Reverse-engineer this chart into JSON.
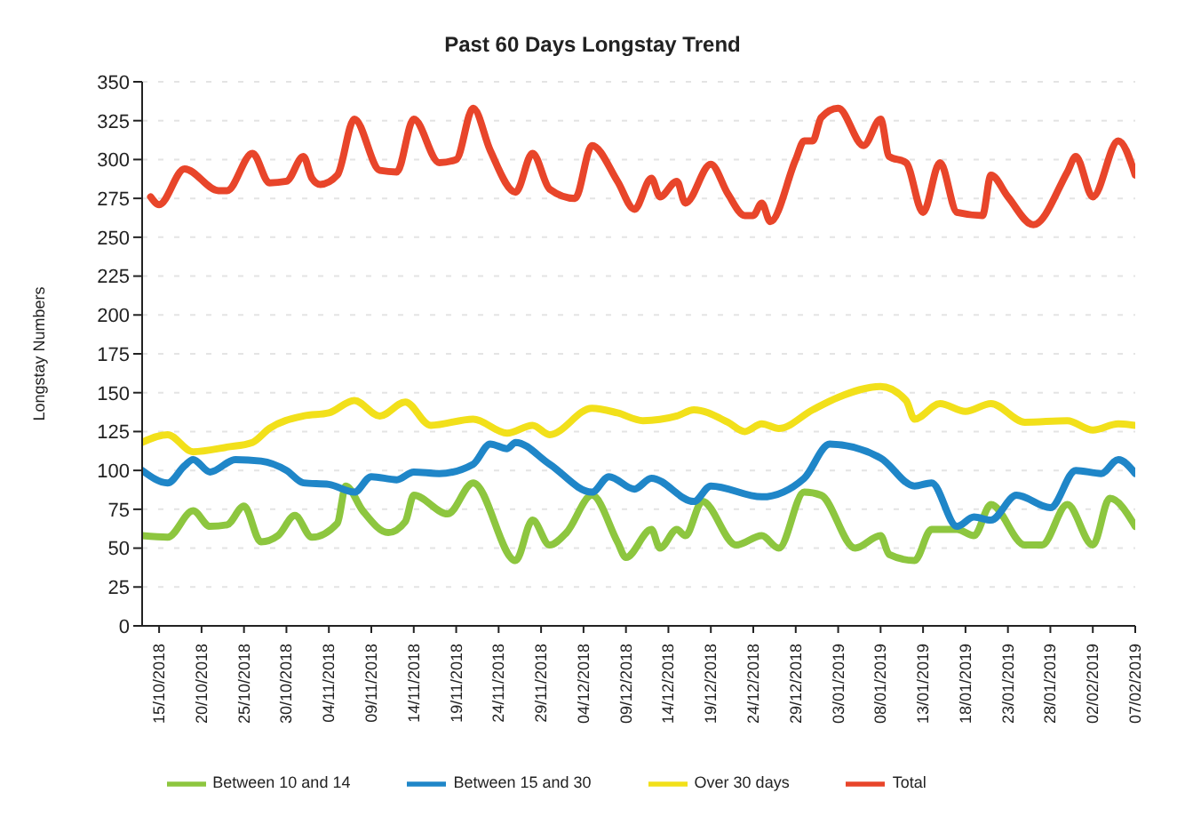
{
  "chart_data": {
    "type": "line",
    "title": "Past 60 Days Longstay Trend",
    "ylabel": "Longstay Numbers",
    "xlim": [
      "2018-10-13",
      "2019-02-07"
    ],
    "xticks": [
      {
        "value": "2018-10-15",
        "label": "15/10/2018"
      },
      {
        "value": "2018-10-20",
        "label": "20/10/2018"
      },
      {
        "value": "2018-10-25",
        "label": "25/10/2018"
      },
      {
        "value": "2018-10-30",
        "label": "30/10/2018"
      },
      {
        "value": "2018-11-04",
        "label": "04/11/2018"
      },
      {
        "value": "2018-11-09",
        "label": "09/11/2018"
      },
      {
        "value": "2018-11-14",
        "label": "14/11/2018"
      },
      {
        "value": "2018-11-19",
        "label": "19/11/2018"
      },
      {
        "value": "2018-11-24",
        "label": "24/11/2018"
      },
      {
        "value": "2018-11-29",
        "label": "29/11/2018"
      },
      {
        "value": "2018-12-04",
        "label": "04/12/2018"
      },
      {
        "value": "2018-12-09",
        "label": "09/12/2018"
      },
      {
        "value": "2018-12-14",
        "label": "14/12/2018"
      },
      {
        "value": "2018-12-19",
        "label": "19/12/2018"
      },
      {
        "value": "2018-12-24",
        "label": "24/12/2018"
      },
      {
        "value": "2018-12-29",
        "label": "29/12/2018"
      },
      {
        "value": "2019-01-03",
        "label": "03/01/2019"
      },
      {
        "value": "2019-01-08",
        "label": "08/01/2019"
      },
      {
        "value": "2019-01-13",
        "label": "13/01/2019"
      },
      {
        "value": "2019-01-18",
        "label": "18/01/2019"
      },
      {
        "value": "2019-01-23",
        "label": "23/01/2019"
      },
      {
        "value": "2019-01-28",
        "label": "28/01/2019"
      },
      {
        "value": "2019-02-02",
        "label": "02/02/2019"
      },
      {
        "value": "2019-02-07",
        "label": "07/02/2019"
      }
    ],
    "ylim": [
      0,
      350
    ],
    "yticks": [
      0,
      25,
      50,
      75,
      100,
      125,
      150,
      175,
      200,
      225,
      250,
      275,
      300,
      325,
      350
    ],
    "grid": "y",
    "legend": "bottom",
    "marker": "none",
    "line_style": "solid",
    "series": [
      {
        "name": "Between 10 and 14",
        "color": "#8dc63f",
        "x": [
          "2018-10-13",
          "2018-10-16",
          "2018-10-19",
          "2018-10-21",
          "2018-10-23",
          "2018-10-25",
          "2018-10-27",
          "2018-10-29",
          "2018-10-31",
          "2018-11-02",
          "2018-11-05",
          "2018-11-06",
          "2018-11-08",
          "2018-11-11",
          "2018-11-13",
          "2018-11-14",
          "2018-11-18",
          "2018-11-21",
          "2018-11-26",
          "2018-11-28",
          "2018-11-30",
          "2018-12-02",
          "2018-12-05",
          "2018-12-08",
          "2018-12-09",
          "2018-12-12",
          "2018-12-13",
          "2018-12-15",
          "2018-12-16",
          "2018-12-18",
          "2018-12-22",
          "2018-12-25",
          "2018-12-27",
          "2018-12-30",
          "2019-01-01",
          "2019-01-05",
          "2019-01-08",
          "2019-01-09",
          "2019-01-12",
          "2019-01-14",
          "2019-01-17",
          "2019-01-19",
          "2019-01-21",
          "2019-01-25",
          "2019-01-27",
          "2019-01-30",
          "2019-02-02",
          "2019-02-04",
          "2019-02-07"
        ],
        "values": [
          58,
          57,
          74,
          64,
          65,
          77,
          54,
          58,
          71,
          57,
          66,
          90,
          74,
          60,
          67,
          84,
          72,
          92,
          42,
          68,
          52,
          60,
          84,
          54,
          44,
          62,
          50,
          62,
          58,
          80,
          52,
          58,
          50,
          86,
          84,
          50,
          58,
          46,
          42,
          62,
          62,
          58,
          78,
          52,
          52,
          78,
          52,
          82,
          64
        ]
      },
      {
        "name": "Between 15 and 30",
        "color": "#1f86c8",
        "x": [
          "2018-10-13",
          "2018-10-16",
          "2018-10-18",
          "2018-10-19",
          "2018-10-21",
          "2018-10-24",
          "2018-10-27",
          "2018-10-30",
          "2018-11-01",
          "2018-11-04",
          "2018-11-07",
          "2018-11-09",
          "2018-11-12",
          "2018-11-14",
          "2018-11-17",
          "2018-11-21",
          "2018-11-23",
          "2018-11-25",
          "2018-11-26",
          "2018-11-30",
          "2018-12-05",
          "2018-12-07",
          "2018-12-10",
          "2018-12-12",
          "2018-12-17",
          "2018-12-19",
          "2018-12-25",
          "2018-12-30",
          "2019-01-02",
          "2019-01-08",
          "2019-01-12",
          "2019-01-14",
          "2019-01-17",
          "2019-01-19",
          "2019-01-21",
          "2019-01-24",
          "2019-01-28",
          "2019-01-31",
          "2019-02-03",
          "2019-02-05",
          "2019-02-07"
        ],
        "values": [
          100,
          92,
          103,
          107,
          99,
          107,
          106,
          100,
          92,
          91,
          86,
          96,
          94,
          99,
          98,
          104,
          117,
          114,
          118,
          104,
          86,
          96,
          88,
          95,
          80,
          90,
          83,
          95,
          117,
          108,
          90,
          92,
          64,
          70,
          68,
          84,
          76,
          100,
          98,
          107,
          98
        ]
      },
      {
        "name": "Over 30 days",
        "color": "#f2e01a",
        "x": [
          "2018-10-13",
          "2018-10-16",
          "2018-10-19",
          "2018-10-23",
          "2018-10-26",
          "2018-10-28",
          "2018-11-01",
          "2018-11-04",
          "2018-11-07",
          "2018-11-10",
          "2018-11-13",
          "2018-11-16",
          "2018-11-21",
          "2018-11-25",
          "2018-11-28",
          "2018-11-30",
          "2018-12-05",
          "2018-12-08",
          "2018-12-11",
          "2018-12-15",
          "2018-12-17",
          "2018-12-21",
          "2018-12-23",
          "2018-12-25",
          "2018-12-27",
          "2018-12-31",
          "2019-01-03",
          "2019-01-08",
          "2019-01-11",
          "2019-01-12",
          "2019-01-15",
          "2019-01-18",
          "2019-01-21",
          "2019-01-25",
          "2019-01-30",
          "2019-02-02",
          "2019-02-05",
          "2019-02-07"
        ],
        "values": [
          118,
          123,
          112,
          115,
          118,
          127,
          135,
          137,
          145,
          135,
          144,
          129,
          133,
          124,
          129,
          123,
          140,
          137,
          132,
          135,
          139,
          131,
          125,
          130,
          127,
          139,
          147,
          154,
          145,
          133,
          143,
          138,
          143,
          131,
          132,
          126,
          130,
          129
        ]
      },
      {
        "name": "Total",
        "color": "#e8452a",
        "x": [
          "2018-10-14",
          "2018-10-15",
          "2018-10-18",
          "2018-10-22",
          "2018-10-23",
          "2018-10-26",
          "2018-10-28",
          "2018-10-30",
          "2018-11-01",
          "2018-11-02",
          "2018-11-03",
          "2018-11-05",
          "2018-11-07",
          "2018-11-10",
          "2018-11-12",
          "2018-11-14",
          "2018-11-17",
          "2018-11-19",
          "2018-11-21",
          "2018-11-23",
          "2018-11-26",
          "2018-11-28",
          "2018-11-30",
          "2018-12-03",
          "2018-12-05",
          "2018-12-08",
          "2018-12-10",
          "2018-12-12",
          "2018-12-13",
          "2018-12-15",
          "2018-12-16",
          "2018-12-19",
          "2018-12-21",
          "2018-12-23",
          "2018-12-24",
          "2018-12-25",
          "2018-12-26",
          "2018-12-29",
          "2018-12-30",
          "2018-12-31",
          "2019-01-01",
          "2019-01-03",
          "2019-01-06",
          "2019-01-08",
          "2019-01-09",
          "2019-01-11",
          "2019-01-13",
          "2019-01-15",
          "2019-01-17",
          "2019-01-20",
          "2019-01-21",
          "2019-01-23",
          "2019-01-26",
          "2019-01-30",
          "2019-01-31",
          "2019-02-02",
          "2019-02-05",
          "2019-02-07"
        ],
        "values": [
          276,
          271,
          294,
          280,
          280,
          304,
          285,
          286,
          302,
          288,
          284,
          290,
          326,
          293,
          292,
          326,
          298,
          300,
          333,
          306,
          279,
          304,
          281,
          275,
          309,
          286,
          268,
          288,
          276,
          286,
          272,
          297,
          278,
          264,
          264,
          272,
          260,
          300,
          312,
          312,
          327,
          333,
          309,
          326,
          302,
          298,
          266,
          298,
          266,
          264,
          290,
          276,
          258,
          292,
          302,
          276,
          312,
          290
        ]
      }
    ]
  }
}
